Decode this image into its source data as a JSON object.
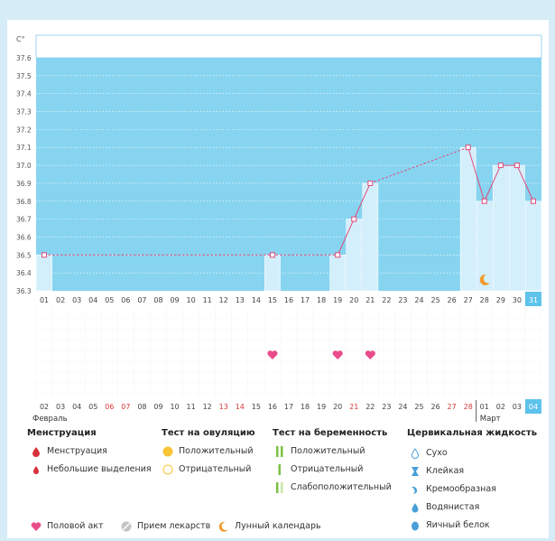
{
  "chart_data": {
    "type": "line",
    "title": "",
    "ylabel": "C°",
    "ylim": [
      36.3,
      37.6
    ],
    "yticks": [
      "37.6",
      "37.5",
      "37.4",
      "37.3",
      "37.2",
      "37.1",
      "37.0",
      "36.9",
      "36.8",
      "36.7",
      "36.6",
      "36.5",
      "36.4",
      "36.3"
    ],
    "cycle_days": [
      "01",
      "02",
      "03",
      "04",
      "05",
      "06",
      "07",
      "08",
      "09",
      "10",
      "11",
      "12",
      "13",
      "14",
      "15",
      "16",
      "17",
      "18",
      "19",
      "20",
      "21",
      "22",
      "23",
      "24",
      "25",
      "26",
      "27",
      "28",
      "29",
      "30",
      "31"
    ],
    "highlight_day": "31",
    "temperatures": [
      {
        "day": 1,
        "value": 36.5
      },
      {
        "day": 15,
        "value": 36.5
      },
      {
        "day": 19,
        "value": 36.5
      },
      {
        "day": 20,
        "value": 36.7
      },
      {
        "day": 21,
        "value": 36.9
      },
      {
        "day": 27,
        "value": 37.1
      },
      {
        "day": 28,
        "value": 36.8
      },
      {
        "day": 29,
        "value": 37.0
      },
      {
        "day": 30,
        "value": 37.0
      },
      {
        "day": 31,
        "value": 36.8
      }
    ],
    "segments": [
      {
        "from": 1,
        "to": 19,
        "style": "dashed"
      },
      {
        "from": 19,
        "to": 21,
        "style": "solid"
      },
      {
        "from": 21,
        "to": 27,
        "style": "dashed"
      },
      {
        "from": 27,
        "to": 31,
        "style": "solid"
      }
    ],
    "bars": [
      1,
      15,
      19,
      20,
      21,
      27,
      28,
      29,
      30,
      31
    ],
    "moon_day": 28,
    "intercourse_days": [
      15,
      19,
      21
    ],
    "calendar_days": [
      "02",
      "03",
      "04",
      "05",
      "06",
      "07",
      "08",
      "09",
      "10",
      "11",
      "12",
      "13",
      "14",
      "15",
      "16",
      "17",
      "18",
      "19",
      "20",
      "21",
      "22",
      "23",
      "24",
      "25",
      "26",
      "27",
      "28",
      "01",
      "02",
      "03",
      "04"
    ],
    "calendar_red_days": [
      4,
      5,
      11,
      12,
      19,
      25,
      26
    ],
    "calendar_highlight": "04",
    "month_left": "Февраль",
    "month_right": "Март",
    "month_split_index": 27
  },
  "colors": {
    "sky": "#87d4f0",
    "bar": "#d4effc",
    "line": "#e04a7c",
    "accent_box": "#5ec3ea",
    "pink": "#ea4b8b",
    "red_text": "#d83a3a",
    "moon": "#f09a2a"
  },
  "legend": {
    "menstruation": {
      "title": "Менструация",
      "items": [
        "Менструация",
        "Небольшие выделения"
      ]
    },
    "ovulation": {
      "title": "Тест на овуляцию",
      "items": [
        "Положительный",
        "Отрицательный"
      ]
    },
    "pregnancy": {
      "title": "Тест на беременность",
      "items": [
        "Положительный",
        "Отрицательный",
        "Слабоположительный"
      ]
    },
    "cervical": {
      "title": "Цервикальная жидкость",
      "items": [
        "Сухо",
        "Клейкая",
        "Кремообразная",
        "Водянистая",
        "Яичный белок"
      ]
    },
    "bottom": [
      "Половой акт",
      "Прием лекарств",
      "Лунный календарь"
    ]
  }
}
